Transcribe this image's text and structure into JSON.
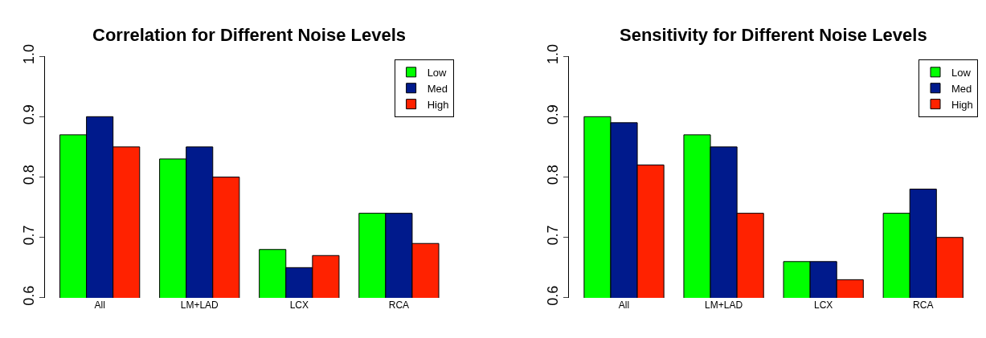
{
  "chart_data": [
    {
      "type": "bar",
      "title": "Correlation for Different Noise Levels",
      "categories": [
        "All",
        "LM+LAD",
        "LCX",
        "RCA"
      ],
      "series": [
        {
          "name": "Low",
          "color": "#00ff00",
          "values": [
            0.87,
            0.83,
            0.68,
            0.74
          ]
        },
        {
          "name": "Med",
          "color": "#001a8c",
          "values": [
            0.9,
            0.85,
            0.65,
            0.74
          ]
        },
        {
          "name": "High",
          "color": "#ff2200",
          "values": [
            0.85,
            0.8,
            0.67,
            0.69
          ]
        }
      ],
      "ylim": [
        0.6,
        1.0
      ],
      "yticks": [
        0.6,
        0.7,
        0.8,
        0.9,
        {
          "value": 1.0,
          "label": "1.0"
        }
      ],
      "grid": false,
      "legend": "top right"
    },
    {
      "type": "bar",
      "title": "Sensitivity for Different Noise Levels",
      "categories": [
        "All",
        "LM+LAD",
        "LCX",
        "RCA"
      ],
      "series": [
        {
          "name": "Low",
          "color": "#00ff00",
          "values": [
            0.9,
            0.87,
            0.66,
            0.74
          ]
        },
        {
          "name": "Med",
          "color": "#001a8c",
          "values": [
            0.89,
            0.85,
            0.66,
            0.78
          ]
        },
        {
          "name": "High",
          "color": "#ff2200",
          "values": [
            0.82,
            0.74,
            0.63,
            0.7
          ]
        }
      ],
      "ylim": [
        0.6,
        1.0
      ],
      "yticks": [
        0.6,
        0.7,
        0.8,
        0.9,
        {
          "value": 1.0,
          "label": "1.0"
        }
      ],
      "grid": false,
      "legend": "top right"
    }
  ]
}
